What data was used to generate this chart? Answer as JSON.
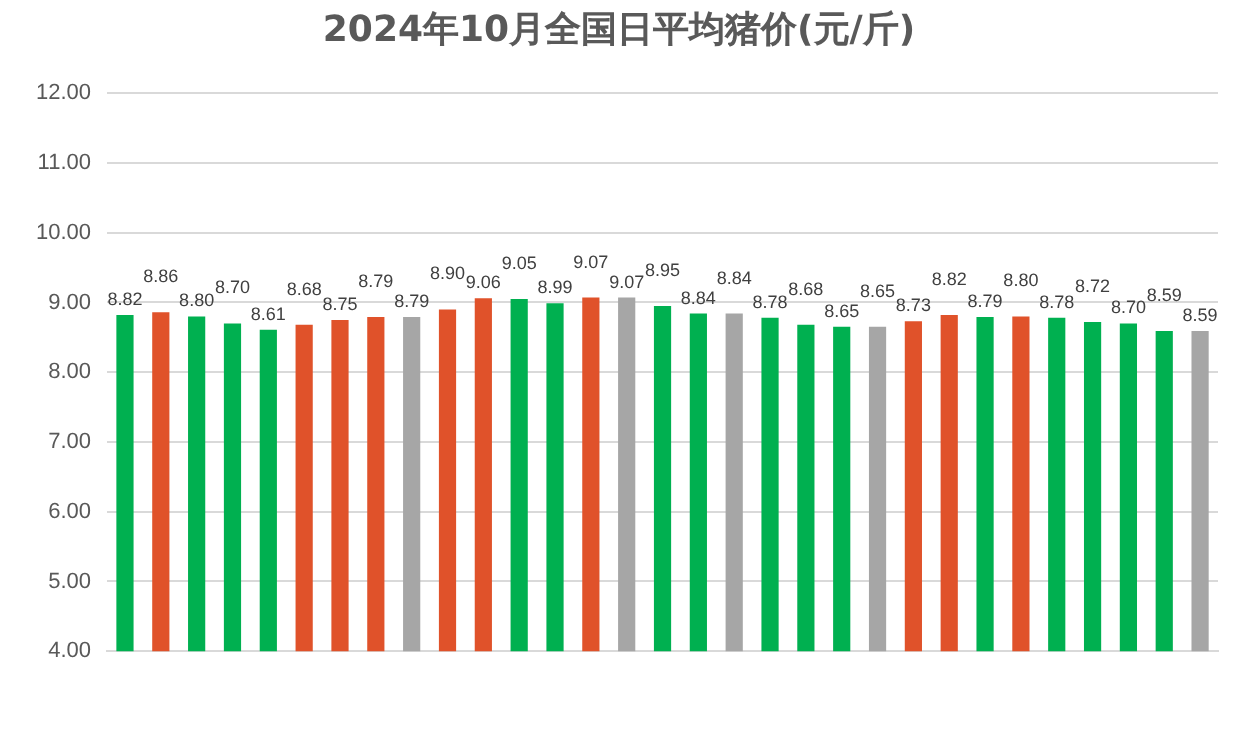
{
  "chart_data": {
    "type": "bar",
    "title": "2024年10月全国日平均猪价(元/斤)",
    "categories": [
      null,
      null,
      null,
      null,
      null,
      null,
      null,
      null,
      null,
      null,
      null,
      null,
      null,
      null,
      null,
      null,
      null,
      null,
      null,
      null,
      null,
      null,
      null,
      null,
      null,
      null,
      null,
      null,
      null,
      null,
      null
    ],
    "values": [
      8.82,
      8.86,
      8.8,
      8.7,
      8.61,
      8.68,
      8.75,
      8.79,
      8.79,
      8.9,
      9.06,
      9.05,
      8.99,
      9.07,
      9.07,
      8.95,
      8.84,
      8.84,
      8.78,
      8.68,
      8.65,
      8.65,
      8.73,
      8.82,
      8.79,
      8.8,
      8.78,
      8.72,
      8.7,
      8.59,
      8.59
    ],
    "value_labels": [
      "8.82",
      "8.86",
      "8.80",
      "8.70",
      "8.61",
      "8.68",
      "8.75",
      "8.79",
      "8.79",
      "8.90",
      "9.06",
      "9.05",
      "8.99",
      "9.07",
      "9.07",
      "8.95",
      "8.84",
      "8.84",
      "8.78",
      "8.68",
      "8.65",
      "8.65",
      "8.73",
      "8.82",
      "8.79",
      "8.80",
      "8.78",
      "8.72",
      "8.70",
      "8.59",
      "8.59"
    ],
    "colors": [
      "#00b050",
      "#e0522a",
      "#00b050",
      "#00b050",
      "#00b050",
      "#e0522a",
      "#e0522a",
      "#e0522a",
      "#a6a6a6",
      "#e0522a",
      "#e0522a",
      "#00b050",
      "#00b050",
      "#e0522a",
      "#a6a6a6",
      "#00b050",
      "#00b050",
      "#a6a6a6",
      "#00b050",
      "#00b050",
      "#00b050",
      "#a6a6a6",
      "#e0522a",
      "#e0522a",
      "#00b050",
      "#e0522a",
      "#00b050",
      "#00b050",
      "#00b050",
      "#00b050",
      "#a6a6a6"
    ],
    "ylim": [
      4,
      12
    ],
    "yticks": [
      {
        "value": 4,
        "label": "4.00"
      },
      {
        "value": 5,
        "label": "5.00"
      },
      {
        "value": 6,
        "label": "6.00"
      },
      {
        "value": 7,
        "label": "7.00"
      },
      {
        "value": 8,
        "label": "8.00"
      },
      {
        "value": 9,
        "label": "9.00"
      },
      {
        "value": 10,
        "label": "10.00"
      },
      {
        "value": 11,
        "label": "11.00"
      },
      {
        "value": 12,
        "label": "12.00"
      }
    ],
    "grid": "y",
    "legend": false
  }
}
